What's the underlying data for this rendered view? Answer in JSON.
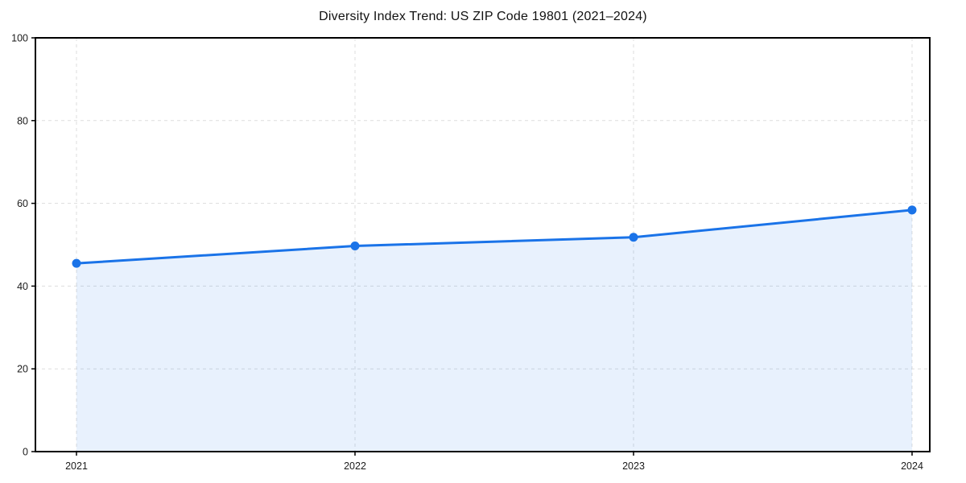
{
  "chart_data": {
    "type": "area",
    "title": "Diversity Index Trend: US ZIP Code 19801 (2021–2024)",
    "categories": [
      "2021",
      "2022",
      "2023",
      "2024"
    ],
    "series": [
      {
        "name": "Diversity Index",
        "values": [
          45.5,
          49.7,
          51.8,
          58.4
        ]
      }
    ],
    "xlabel": "",
    "ylabel": "",
    "ylim": [
      0,
      100
    ],
    "yticks": [
      0,
      20,
      40,
      60,
      80,
      100
    ],
    "grid": true,
    "grid_style": "dashed",
    "legend": "none",
    "line_color": "#1a73e8",
    "marker_color": "#1a73e8",
    "marker": "circle",
    "fill_color": "#1a73e8",
    "fill_opacity": 0.1,
    "grid_color": "#dddddd",
    "axis_color": "#000000",
    "tick_label_color": "#1a1a1a",
    "background_color": "#ffffff"
  }
}
